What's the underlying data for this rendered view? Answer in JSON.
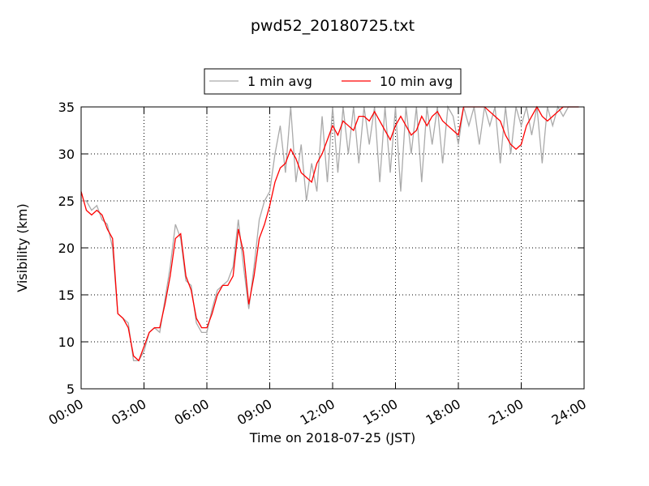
{
  "chart_data": {
    "type": "line",
    "title": "pwd52_20180725.txt",
    "xlabel": "Time on 2018-07-25 (JST)",
    "ylabel": "Visibility (km)",
    "x": [
      0,
      0.25,
      0.5,
      0.75,
      1,
      1.25,
      1.5,
      1.75,
      2,
      2.25,
      2.5,
      2.75,
      3,
      3.25,
      3.5,
      3.75,
      4,
      4.25,
      4.5,
      4.75,
      5,
      5.25,
      5.5,
      5.75,
      6,
      6.25,
      6.5,
      6.75,
      7,
      7.25,
      7.5,
      7.75,
      8,
      8.25,
      8.5,
      8.75,
      9,
      9.25,
      9.5,
      9.75,
      10,
      10.25,
      10.5,
      10.75,
      11,
      11.25,
      11.5,
      11.75,
      12,
      12.25,
      12.5,
      12.75,
      13,
      13.25,
      13.5,
      13.75,
      14,
      14.25,
      14.5,
      14.75,
      15,
      15.25,
      15.5,
      15.75,
      16,
      16.25,
      16.5,
      16.75,
      17,
      17.25,
      17.5,
      17.75,
      18,
      18.25,
      18.5,
      18.75,
      19,
      19.25,
      19.5,
      19.75,
      20,
      20.25,
      20.5,
      20.75,
      21,
      21.25,
      21.5,
      21.75,
      22,
      22.25,
      22.5,
      22.75,
      23,
      23.25,
      23.5,
      23.75
    ],
    "series": [
      {
        "name": "1 min avg",
        "color": "#aaaaaa",
        "values": [
          25,
          25,
          24,
          24.5,
          23,
          22.5,
          20,
          13,
          12.5,
          12,
          8,
          8,
          9,
          11,
          11.5,
          11,
          14.5,
          18,
          22.5,
          21,
          16.5,
          16,
          12,
          11,
          11,
          13.5,
          15.5,
          16,
          16.5,
          18,
          23,
          18,
          13.5,
          18,
          23,
          25,
          26,
          30,
          33,
          28,
          35,
          27,
          31,
          25,
          29,
          26,
          34,
          27,
          35,
          28,
          35,
          30,
          35,
          29,
          35,
          31,
          35,
          27,
          35,
          28,
          35,
          26,
          35,
          30,
          35,
          27,
          35,
          31,
          35,
          29,
          35,
          34,
          31,
          35,
          33,
          35,
          31,
          35,
          33,
          35,
          29,
          35,
          30,
          35,
          33,
          35,
          32,
          35,
          29,
          35,
          33,
          35,
          34,
          35,
          35,
          35
        ]
      },
      {
        "name": "10 min avg",
        "color": "#ff0000",
        "values": [
          26,
          24,
          23.5,
          24,
          23.5,
          22,
          21,
          13,
          12.5,
          11.5,
          8.5,
          8,
          9.5,
          11,
          11.5,
          11.5,
          14,
          17,
          21,
          21.5,
          17,
          15.5,
          12.5,
          11.5,
          11.5,
          13,
          15,
          16,
          16,
          17,
          22,
          19.5,
          14,
          17,
          21,
          22.5,
          24.5,
          27,
          28.5,
          29,
          30.5,
          29.5,
          28,
          27.5,
          27,
          29,
          30,
          31.5,
          33,
          32,
          33.5,
          33,
          32.5,
          34,
          34,
          33.5,
          34.5,
          33.5,
          32.5,
          31.5,
          33,
          34,
          33,
          32,
          32.5,
          34,
          33,
          34,
          34.5,
          33.5,
          33,
          32.5,
          32,
          35,
          35,
          35,
          35,
          35,
          34.5,
          34,
          33.5,
          32,
          31,
          30.5,
          31,
          33,
          34,
          35,
          34,
          33.5,
          34,
          34.5,
          35,
          35,
          35,
          35
        ]
      }
    ],
    "xlim": [
      0,
      24
    ],
    "xticks": [
      {
        "value": 0,
        "label": "00:00"
      },
      {
        "value": 3,
        "label": "03:00"
      },
      {
        "value": 6,
        "label": "06:00"
      },
      {
        "value": 9,
        "label": "09:00"
      },
      {
        "value": 12,
        "label": "12:00"
      },
      {
        "value": 15,
        "label": "15:00"
      },
      {
        "value": 18,
        "label": "18:00"
      },
      {
        "value": 21,
        "label": "21:00"
      },
      {
        "value": 24,
        "label": "24:00"
      }
    ],
    "ylim": [
      5,
      35
    ],
    "yticks": [
      5,
      10,
      15,
      20,
      25,
      30,
      35
    ],
    "grid": true,
    "legend": "top"
  }
}
